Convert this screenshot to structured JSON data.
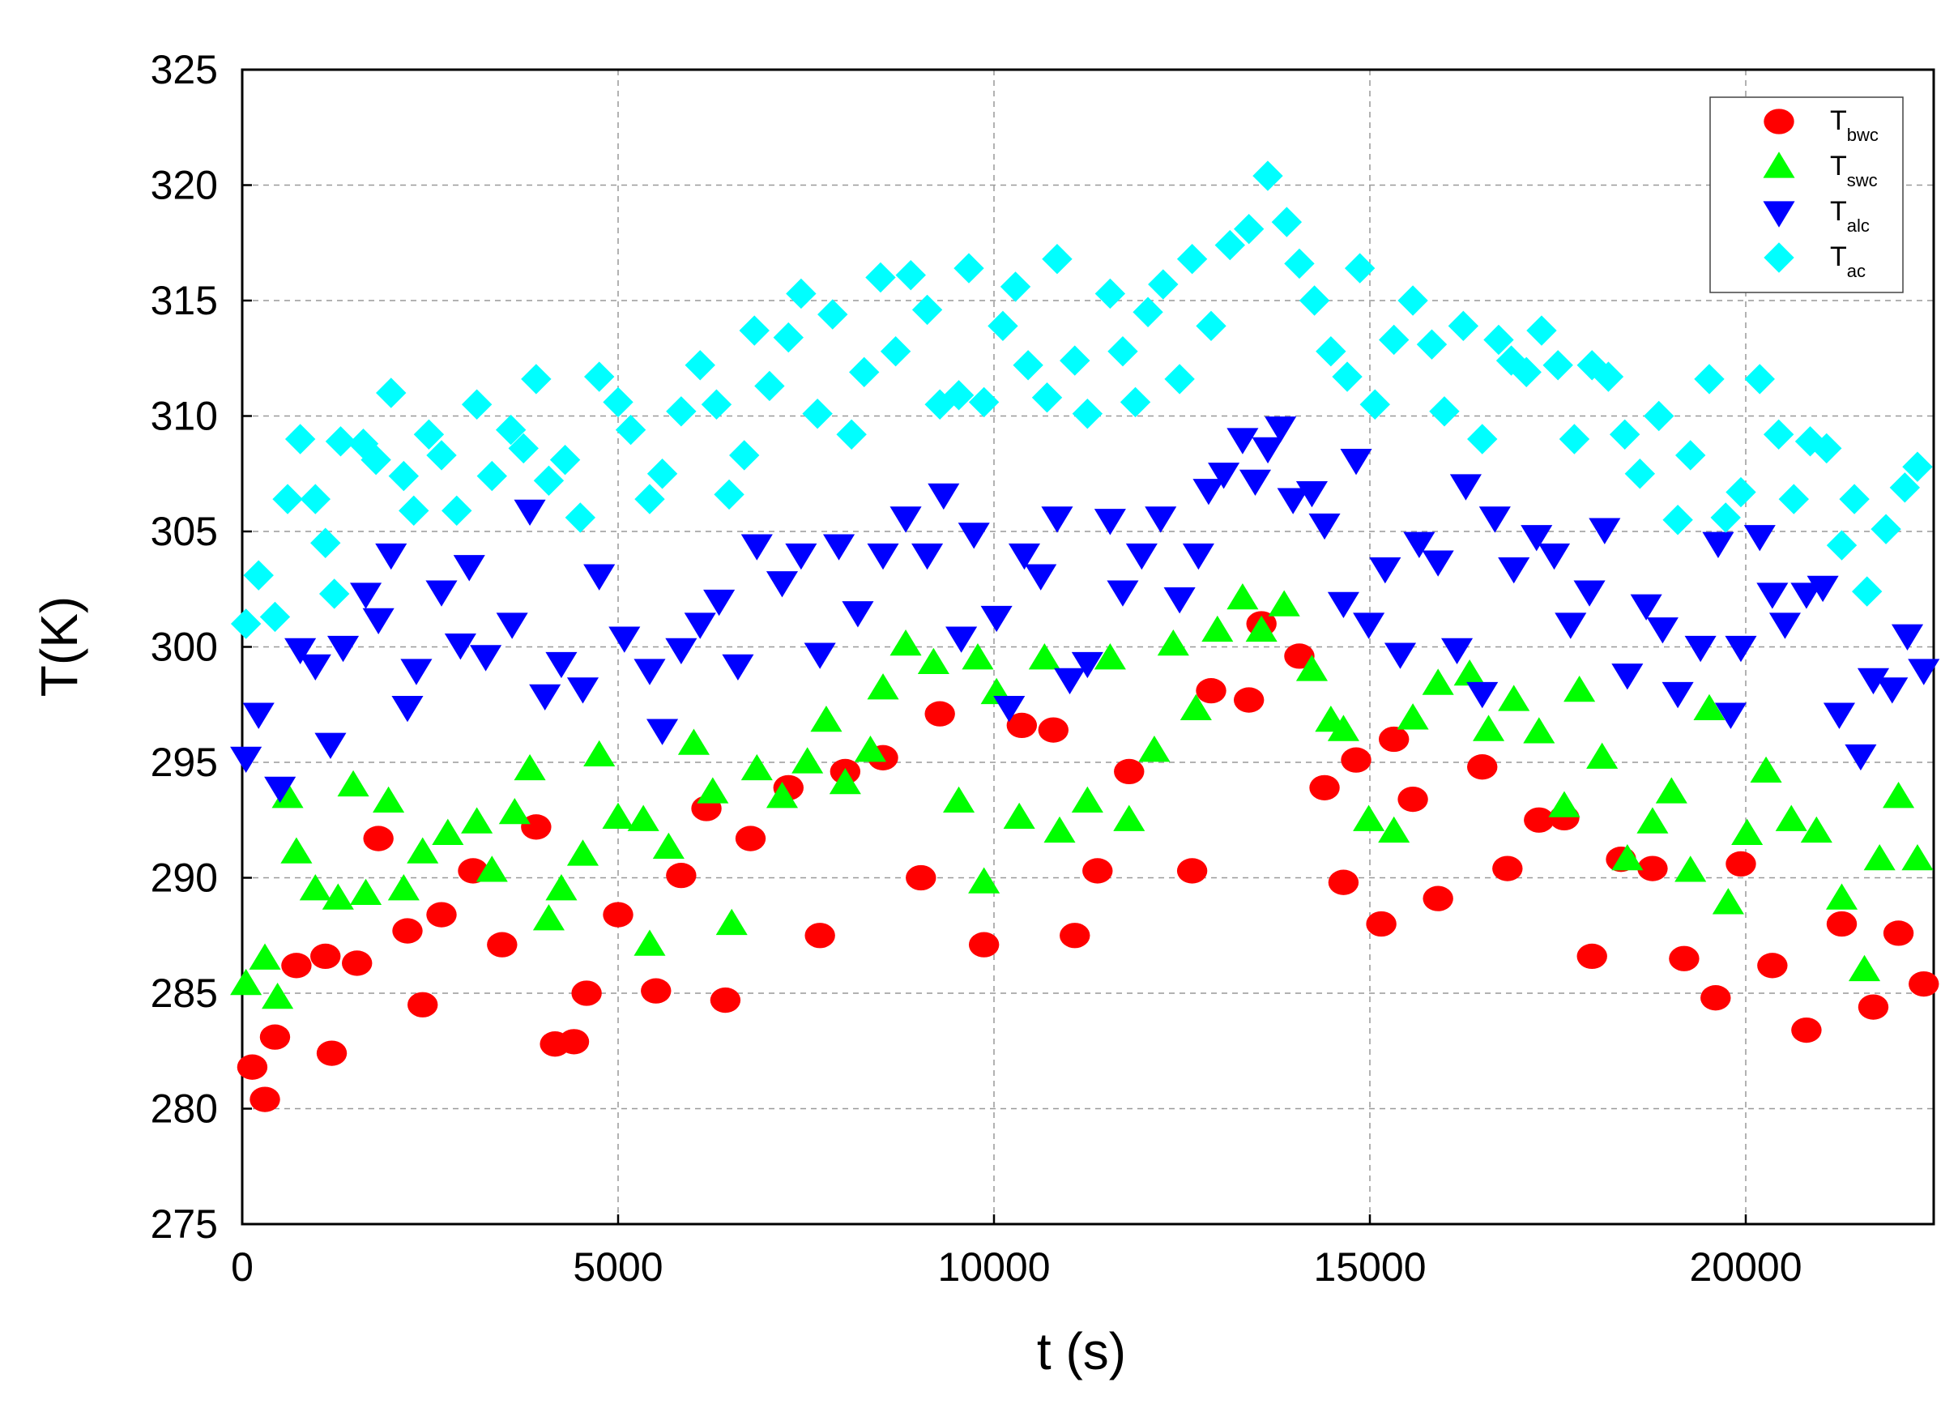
{
  "chart_data": {
    "type": "scatter",
    "x_label": "t (s)",
    "y_label": "T(K)",
    "xlim": [
      0,
      22500
    ],
    "ylim": [
      275,
      325
    ],
    "xticks": [
      0,
      5000,
      10000,
      15000,
      20000
    ],
    "yticks": [
      275,
      280,
      285,
      290,
      295,
      300,
      305,
      310,
      315,
      320,
      325
    ],
    "grid": true,
    "legend_loc": "upper right",
    "series": [
      {
        "name": "T",
        "subscript": "bwc",
        "color": "#ff0000",
        "marker": "circle",
        "x": [
          134,
          302,
          436,
          721,
          1107,
          1191,
          1527,
          1812,
          2198,
          2400,
          2651,
          3071,
          3457,
          3910,
          4161,
          4413,
          4581,
          5000,
          5504,
          5839,
          6175,
          6427,
          6762,
          7266,
          7685,
          8021,
          8524,
          9028,
          9280,
          9867,
          10370,
          10790,
          11075,
          11377,
          11797,
          12636,
          12888,
          13391,
          13558,
          14062,
          14397,
          14649,
          14817,
          15152,
          15320,
          15572,
          15907,
          16495,
          16830,
          17250,
          17586,
          17955,
          18341,
          18760,
          19180,
          19599,
          19935,
          20354,
          20807,
          21277,
          21697,
          22032,
          22368
        ],
        "values": [
          281.8,
          280.4,
          283.1,
          286.2,
          286.6,
          282.4,
          286.3,
          291.7,
          287.7,
          284.5,
          288.4,
          290.3,
          287.1,
          292.2,
          282.8,
          282.9,
          285.0,
          288.4,
          285.1,
          290.1,
          293.0,
          284.7,
          291.7,
          293.9,
          287.5,
          294.6,
          295.2,
          290.0,
          297.1,
          287.1,
          296.6,
          296.4,
          287.5,
          290.3,
          294.6,
          290.3,
          298.1,
          297.7,
          301.0,
          299.6,
          293.9,
          289.8,
          295.1,
          288.0,
          296.0,
          293.4,
          289.1,
          294.8,
          290.4,
          292.5,
          292.6,
          286.6,
          290.8,
          290.4,
          286.5,
          284.8,
          290.6,
          286.2,
          283.4,
          288.0,
          284.4,
          287.6,
          285.4
        ]
      },
      {
        "name": "T",
        "subscript": "swc",
        "color": "#00ff00",
        "marker": "triangle-up",
        "x": [
          50,
          302,
          470,
          604,
          721,
          973,
          1275,
          1477,
          1644,
          1946,
          2148,
          2400,
          2735,
          3121,
          3322,
          3624,
          3826,
          4078,
          4245,
          4531,
          4749,
          5000,
          5336,
          5420,
          5672,
          6007,
          6259,
          6511,
          6846,
          7182,
          7518,
          7769,
          8021,
          8356,
          8524,
          8826,
          9196,
          9532,
          9784,
          9867,
          10034,
          10336,
          10672,
          10873,
          11243,
          11545,
          11797,
          12133,
          12385,
          12687,
          12972,
          13307,
          13558,
          13860,
          14229,
          14481,
          14649,
          14985,
          15320,
          15572,
          15907,
          16327,
          16579,
          16915,
          17250,
          17586,
          17787,
          18089,
          18425,
          18760,
          19012,
          19264,
          19515,
          19767,
          20018,
          20270,
          20606,
          20941,
          21277,
          21579,
          21780,
          22032,
          22284
        ],
        "values": [
          285.4,
          286.5,
          284.8,
          293.5,
          291.1,
          289.5,
          289.1,
          294.0,
          289.3,
          293.3,
          289.5,
          291.1,
          291.9,
          292.4,
          290.3,
          292.8,
          294.7,
          288.2,
          289.5,
          291.0,
          295.3,
          292.6,
          292.5,
          287.1,
          291.3,
          295.8,
          293.7,
          288.0,
          294.7,
          293.5,
          295.0,
          296.8,
          294.1,
          295.5,
          298.2,
          300.1,
          299.3,
          293.3,
          299.5,
          289.8,
          298.0,
          292.6,
          299.5,
          292.0,
          293.3,
          299.5,
          292.5,
          295.5,
          300.1,
          297.3,
          300.7,
          302.1,
          300.7,
          301.8,
          299.0,
          296.8,
          296.4,
          292.5,
          292.0,
          296.9,
          298.4,
          298.8,
          296.4,
          297.7,
          296.3,
          293.1,
          298.1,
          295.2,
          290.8,
          292.4,
          293.7,
          290.3,
          297.3,
          288.9,
          291.9,
          294.6,
          292.5,
          292.0,
          289.1,
          286.0,
          290.8,
          293.5,
          290.8
        ]
      },
      {
        "name": "T",
        "subscript": "alc",
        "color": "#0000ff",
        "marker": "triangle-down",
        "x": [
          50,
          218,
          503,
          772,
          973,
          1174,
          1342,
          1644,
          1812,
          1980,
          2198,
          2316,
          2651,
          2903,
          3020,
          3239,
          3590,
          3826,
          4027,
          4245,
          4531,
          4749,
          5084,
          5420,
          5588,
          5839,
          6091,
          6343,
          6594,
          6846,
          7182,
          7434,
          7685,
          7937,
          8189,
          8524,
          8826,
          9112,
          9330,
          9565,
          9733,
          10034,
          10202,
          10404,
          10622,
          10840,
          11008,
          11243,
          11545,
          11713,
          11965,
          12217,
          12469,
          12720,
          12855,
          13056,
          13307,
          13475,
          13643,
          13811,
          13978,
          14229,
          14397,
          14649,
          14817,
          14985,
          15203,
          15404,
          15656,
          15907,
          16159,
          16276,
          16495,
          16663,
          16915,
          17217,
          17452,
          17670,
          17921,
          18123,
          18425,
          18676,
          18894,
          19096,
          19398,
          19633,
          19800,
          19935,
          20186,
          20354,
          20522,
          20807,
          21025,
          21244,
          21529,
          21697,
          21948,
          22150,
          22368
        ],
        "values": [
          295.2,
          297.1,
          293.9,
          299.9,
          299.2,
          295.8,
          300.0,
          302.3,
          301.2,
          304.0,
          297.4,
          299.0,
          302.4,
          300.1,
          303.5,
          299.6,
          301.0,
          305.9,
          297.9,
          299.3,
          298.2,
          303.1,
          300.4,
          299.0,
          296.4,
          299.9,
          301.0,
          302.0,
          299.2,
          304.4,
          302.8,
          304.0,
          299.7,
          304.4,
          301.5,
          304.0,
          305.6,
          304.0,
          306.6,
          300.4,
          304.9,
          301.3,
          297.4,
          304.0,
          303.1,
          305.6,
          298.6,
          299.3,
          305.5,
          302.4,
          304.0,
          305.6,
          302.1,
          304.0,
          306.8,
          307.5,
          309.0,
          307.2,
          308.6,
          309.5,
          306.4,
          306.7,
          305.3,
          301.9,
          308.1,
          301.0,
          303.4,
          299.7,
          304.5,
          303.7,
          299.9,
          307.0,
          298.0,
          305.6,
          303.4,
          304.8,
          304.0,
          301.0,
          302.4,
          305.1,
          298.8,
          301.8,
          300.8,
          298.0,
          300.0,
          304.5,
          297.1,
          300.0,
          304.8,
          302.3,
          301.0,
          302.3,
          302.6,
          297.1,
          295.3,
          298.6,
          298.2,
          300.5,
          299.0
        ]
      },
      {
        "name": "T",
        "subscript": "ac",
        "color": "#00ffff",
        "marker": "diamond",
        "x": [
          50,
          218,
          436,
          604,
          772,
          973,
          1107,
          1225,
          1309,
          1611,
          1779,
          1980,
          2148,
          2282,
          2483,
          2651,
          2853,
          3121,
          3322,
          3574,
          3742,
          3910,
          4078,
          4295,
          4497,
          4749,
          5000,
          5168,
          5420,
          5588,
          5839,
          6091,
          6309,
          6477,
          6678,
          6813,
          7014,
          7266,
          7434,
          7652,
          7853,
          8105,
          8273,
          8491,
          8692,
          8893,
          9112,
          9280,
          9532,
          9666,
          9867,
          10118,
          10286,
          10454,
          10706,
          10840,
          11075,
          11243,
          11545,
          11713,
          11881,
          12048,
          12250,
          12469,
          12636,
          12888,
          13139,
          13391,
          13642,
          13894,
          14062,
          14263,
          14481,
          14699,
          14867,
          15068,
          15320,
          15572,
          15824,
          15991,
          16243,
          16495,
          16713,
          16881,
          17082,
          17284,
          17502,
          17720,
          17955,
          18173,
          18391,
          18592,
          18844,
          19096,
          19264,
          19515,
          19733,
          19935,
          20186,
          20438,
          20639,
          20857,
          21075,
          21277,
          21445,
          21613,
          21865,
          22116,
          22284
        ],
        "values": [
          301.0,
          303.1,
          301.3,
          306.4,
          309.0,
          306.4,
          304.5,
          302.3,
          308.9,
          308.8,
          308.1,
          311.0,
          307.4,
          305.9,
          309.2,
          308.3,
          305.9,
          310.5,
          307.4,
          309.4,
          308.6,
          311.6,
          307.2,
          308.1,
          305.6,
          311.7,
          310.6,
          309.4,
          306.4,
          307.5,
          310.2,
          312.2,
          310.5,
          306.6,
          308.3,
          313.7,
          311.3,
          313.4,
          315.3,
          310.1,
          314.4,
          309.2,
          311.9,
          316.0,
          312.8,
          316.1,
          314.6,
          310.5,
          310.9,
          316.4,
          310.6,
          313.9,
          315.6,
          312.2,
          310.8,
          316.8,
          312.4,
          310.1,
          315.3,
          312.8,
          310.6,
          314.5,
          315.7,
          311.6,
          316.8,
          313.9,
          317.4,
          318.1,
          320.4,
          318.4,
          316.6,
          315.0,
          312.8,
          311.7,
          316.4,
          310.5,
          313.3,
          315.0,
          313.1,
          310.2,
          313.9,
          309.0,
          313.3,
          312.4,
          311.9,
          313.7,
          312.2,
          309.0,
          312.2,
          311.7,
          309.2,
          307.5,
          310.0,
          305.5,
          308.3,
          311.6,
          305.6,
          306.7,
          311.6,
          309.2,
          306.4,
          308.9,
          308.6,
          304.4,
          306.4,
          302.4,
          305.1,
          306.9,
          307.8
        ]
      }
    ]
  }
}
